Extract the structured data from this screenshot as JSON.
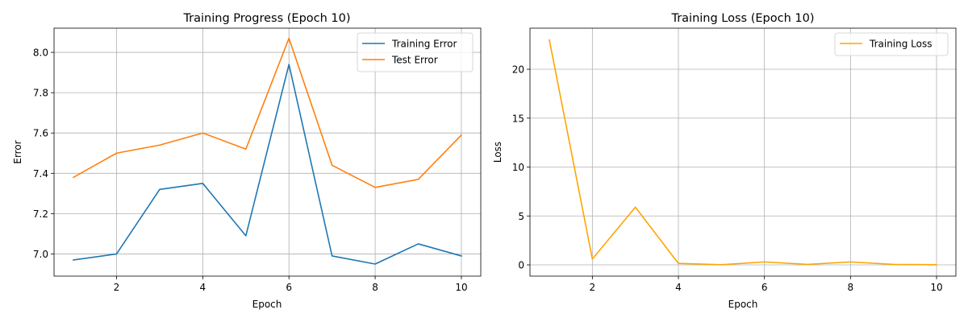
{
  "chart_data": [
    {
      "type": "line",
      "title": "Training Progress (Epoch 10)",
      "xlabel": "Epoch",
      "ylabel": "Error",
      "x": [
        1,
        2,
        3,
        4,
        5,
        6,
        7,
        8,
        9,
        10
      ],
      "xticks": [
        2,
        4,
        6,
        8,
        10
      ],
      "yticks": [
        7.0,
        7.2,
        7.4,
        7.6,
        7.8,
        8.0
      ],
      "ytick_labels": [
        "7.0",
        "7.2",
        "7.4",
        "7.6",
        "7.8",
        "8.0"
      ],
      "xlim": [
        0.55,
        10.45
      ],
      "ylim": [
        6.89,
        8.12
      ],
      "grid": true,
      "legend": "top-right",
      "series": [
        {
          "name": "Training Error",
          "color": "#1f77b4",
          "values": [
            6.97,
            7.0,
            7.32,
            7.35,
            7.09,
            7.94,
            6.99,
            6.95,
            7.05,
            6.99
          ]
        },
        {
          "name": "Test Error",
          "color": "#ff7f0e",
          "values": [
            7.38,
            7.5,
            7.54,
            7.6,
            7.52,
            8.07,
            7.44,
            7.33,
            7.37,
            7.59
          ]
        }
      ]
    },
    {
      "type": "line",
      "title": "Training Loss (Epoch 10)",
      "xlabel": "Epoch",
      "ylabel": "Loss",
      "x": [
        1,
        2,
        3,
        4,
        5,
        6,
        7,
        8,
        9,
        10
      ],
      "xticks": [
        2,
        4,
        6,
        8,
        10
      ],
      "yticks": [
        0,
        5,
        10,
        15,
        20
      ],
      "ytick_labels": [
        "0",
        "5",
        "10",
        "15",
        "20"
      ],
      "xlim": [
        0.55,
        10.45
      ],
      "ylim": [
        -1.15,
        24.2
      ],
      "grid": true,
      "legend": "top-right",
      "series": [
        {
          "name": "Training Loss",
          "color": "#ffa500",
          "values": [
            23.0,
            0.6,
            5.9,
            0.15,
            0.02,
            0.3,
            0.05,
            0.3,
            0.05,
            0.02
          ]
        }
      ]
    }
  ]
}
